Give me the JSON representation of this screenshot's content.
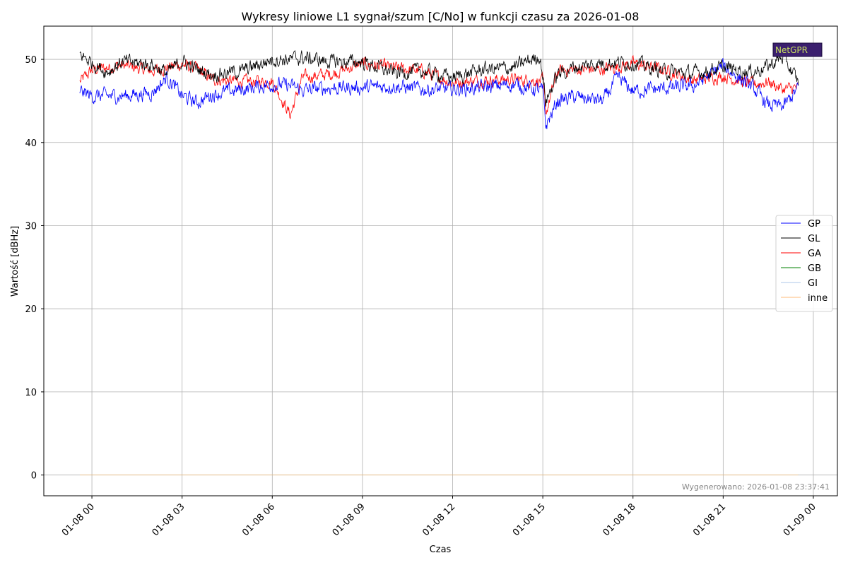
{
  "chart_data": {
    "type": "line",
    "title": "Wykresy liniowe L1 sygnał/szum [C/No] w funkcji czasu za 2026-01-08",
    "xlabel": "Czas",
    "ylabel": "Wartość [dBHz]",
    "ylim": [
      -2.5,
      54
    ],
    "y_ticks": [
      0,
      10,
      20,
      30,
      40,
      50
    ],
    "x_ticks": [
      "01-08 00",
      "01-08 03",
      "01-08 06",
      "01-08 09",
      "01-08 12",
      "01-08 15",
      "01-08 18",
      "01-08 21",
      "01-09 00"
    ],
    "x_tick_hours": [
      0,
      3,
      6,
      9,
      12,
      15,
      18,
      21,
      24
    ],
    "xlim_hours": [
      -1.6,
      24.8
    ],
    "grid": true,
    "legend_position": "right",
    "footer": "Wygenerowano: 2026-01-08 23:37:41",
    "watermark": "NetGPR",
    "series": [
      {
        "name": "GP",
        "color": "#0000ff",
        "x": [
          -0.4,
          0,
          1,
          2,
          2.5,
          3,
          3.5,
          4,
          5,
          6,
          6.6,
          7,
          8,
          9,
          10,
          11,
          12,
          13,
          14,
          15,
          15.1,
          15.5,
          16,
          17,
          17.5,
          18,
          19,
          20,
          21,
          22,
          22.5,
          23,
          23.5
        ],
        "y": [
          46.2,
          45.6,
          45.6,
          46.0,
          47.8,
          45.6,
          44.8,
          45.8,
          46.4,
          47.0,
          46.8,
          46.3,
          46.6,
          46.6,
          46.8,
          46.4,
          46.4,
          46.6,
          47.0,
          46.2,
          42.0,
          45.0,
          45.5,
          45.0,
          47.8,
          46.2,
          46.5,
          46.8,
          49.2,
          46.5,
          44.5,
          44.3,
          46.5
        ]
      },
      {
        "name": "GL",
        "color": "#000000",
        "x": [
          -0.4,
          0,
          0.5,
          1,
          2,
          2.5,
          3,
          3.5,
          4,
          5,
          6,
          6.6,
          7,
          8,
          9,
          10,
          11,
          12,
          13,
          14,
          14.9,
          15,
          15.1,
          15.5,
          16,
          17,
          18,
          19,
          20,
          21,
          22,
          22.5,
          23,
          23.5
        ],
        "y": [
          50.6,
          49.6,
          48.5,
          49.7,
          49.4,
          48.3,
          49.8,
          48.8,
          48.2,
          48.6,
          50.0,
          50.0,
          50.2,
          49.7,
          49.7,
          48.4,
          48.6,
          47.8,
          48.8,
          49.0,
          50.4,
          48.0,
          45.0,
          48.2,
          49.0,
          49.6,
          49.6,
          48.6,
          48.3,
          49.0,
          48.5,
          49.2,
          50.3,
          47.2
        ]
      },
      {
        "name": "GA",
        "color": "#ff0000",
        "x": [
          -0.4,
          0,
          1,
          2,
          3,
          3.5,
          4,
          5,
          6,
          6.6,
          7,
          8,
          9,
          10,
          11,
          12,
          13,
          14,
          15,
          15.1,
          15.5,
          16,
          17,
          18,
          19,
          20,
          21,
          22,
          22.5,
          23,
          23.5
        ],
        "y": [
          47.3,
          48.7,
          49.3,
          48.6,
          49.4,
          48.8,
          47.6,
          47.3,
          47.4,
          43.3,
          47.8,
          48.3,
          49.5,
          49.0,
          48.6,
          47.2,
          47.5,
          47.6,
          47.4,
          43.5,
          48.6,
          48.8,
          48.8,
          49.5,
          48.8,
          47.5,
          48.0,
          47.0,
          47.3,
          46.4,
          46.6
        ]
      },
      {
        "name": "GB",
        "color": "#008000",
        "x": [
          -0.4,
          23.5
        ],
        "y": [
          0,
          0
        ]
      },
      {
        "name": "GI",
        "color": "#aec7e8",
        "x": [
          -0.4,
          23.5
        ],
        "y": [
          0,
          0
        ]
      },
      {
        "name": "inne",
        "color": "#ffbb78",
        "x": [
          -0.4,
          23.5
        ],
        "y": [
          0,
          0
        ]
      }
    ]
  }
}
